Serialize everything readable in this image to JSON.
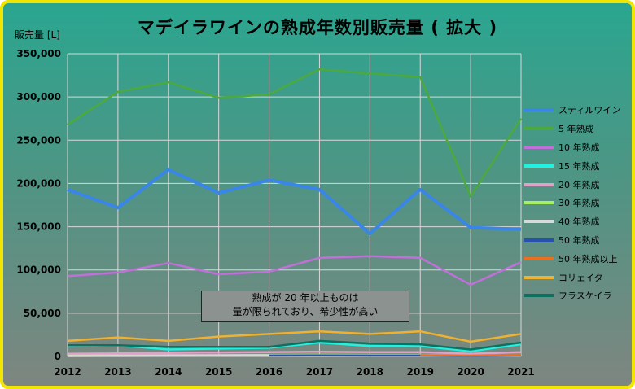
{
  "title": "マデイラワインの熟成年数別販売量 ( 拡大 )",
  "unit_label": "販売量 [L]",
  "annotation": {
    "line1": "熟成が 20 年以上ものは",
    "line2": "量が限られており、希少性が高い"
  },
  "colors": {
    "grid": "#d8d8d8"
  },
  "chart_data": {
    "type": "line",
    "title": "マデイラワインの熟成年数別販売量 ( 拡大 )",
    "ylabel": "販売量 [L]",
    "xlabel": "",
    "ylim": [
      0,
      350000
    ],
    "yticks": [
      0,
      50000,
      100000,
      150000,
      200000,
      250000,
      300000,
      350000
    ],
    "ytick_labels": [
      "0",
      "50,000",
      "100,000",
      "150,000",
      "200,000",
      "250,000",
      "300,000",
      "350,000"
    ],
    "categories": [
      "2012",
      "2013",
      "2014",
      "2015",
      "2016",
      "2017",
      "2018",
      "2019",
      "2020",
      "2021"
    ],
    "grid": true,
    "legend_position": "right",
    "series": [
      {
        "name": "スティルワイン",
        "color": "#3a86e8",
        "width": 4,
        "values": [
          193000,
          172000,
          216000,
          189000,
          204000,
          193000,
          142000,
          193000,
          149000,
          147000
        ]
      },
      {
        "name": "5 年熟成",
        "color": "#4caa3c",
        "width": 2.5,
        "values": [
          268000,
          306000,
          317000,
          299000,
          303000,
          332000,
          327000,
          323000,
          185000,
          275000
        ]
      },
      {
        "name": "10 年熟成",
        "color": "#c070d8",
        "width": 2.5,
        "values": [
          93000,
          97000,
          108000,
          95000,
          98000,
          114000,
          116000,
          114000,
          83000,
          109000
        ]
      },
      {
        "name": "15 年熟成",
        "color": "#22f0e0",
        "width": 2.5,
        "values": [
          12000,
          13000,
          8000,
          9000,
          10000,
          16000,
          12000,
          12000,
          6000,
          14000
        ]
      },
      {
        "name": "20 年熟成",
        "color": "#e0a0c8",
        "width": 2.5,
        "values": [
          3000,
          3500,
          4000,
          4500,
          5000,
          5500,
          5000,
          5000,
          3000,
          5000
        ]
      },
      {
        "name": "30 年熟成",
        "color": "#a8f060",
        "width": 2.5,
        "values": [
          1000,
          1200,
          1500,
          1500,
          1800,
          2000,
          1800,
          1800,
          1200,
          1800
        ]
      },
      {
        "name": "40 年熟成",
        "color": "#d8d8d8",
        "width": 2.5,
        "values": [
          500,
          600,
          700,
          700,
          800,
          900,
          900,
          900,
          600,
          900
        ]
      },
      {
        "name": "50 年熟成",
        "color": "#2850b0",
        "width": 2.5,
        "values": [
          null,
          null,
          null,
          null,
          1000,
          1200,
          1000,
          1000,
          700,
          1000
        ]
      },
      {
        "name": "50 年熟成以上",
        "color": "#e87020",
        "width": 2.5,
        "values": [
          null,
          null,
          null,
          null,
          null,
          null,
          null,
          1500,
          1000,
          2000
        ]
      },
      {
        "name": "コリェイタ",
        "color": "#f0b030",
        "width": 2.5,
        "values": [
          18000,
          22000,
          18000,
          23000,
          26000,
          29000,
          26000,
          29000,
          17000,
          26000
        ]
      },
      {
        "name": "フラスケイラ",
        "color": "#107060",
        "width": 2.5,
        "values": [
          13000,
          13000,
          11000,
          11000,
          11000,
          18000,
          15000,
          14000,
          8000,
          16000
        ]
      }
    ]
  }
}
